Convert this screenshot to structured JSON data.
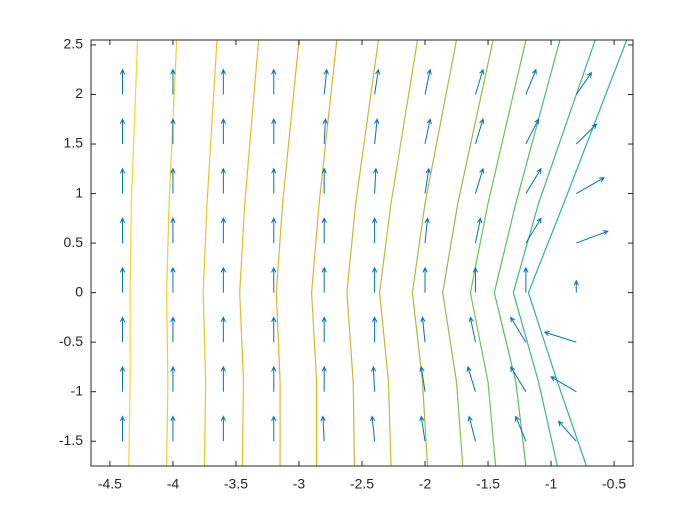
{
  "chart_data": {
    "type": "quiver",
    "xlim": [
      -4.65,
      -0.35
    ],
    "ylim": [
      -1.75,
      2.55
    ],
    "xticks": [
      -4.5,
      -4,
      -3.5,
      -3,
      -2.5,
      -2,
      -1.5,
      -1,
      -0.5
    ],
    "yticks": [
      -1.5,
      -1,
      -0.5,
      0,
      0.5,
      1,
      1.5,
      2,
      2.5
    ],
    "color": "#0072bd",
    "x": [
      -4.4,
      -4.0,
      -3.6,
      -3.2,
      -2.8,
      -2.4,
      -2.0,
      -1.6,
      -1.2,
      -0.8,
      -4.4,
      -4.0,
      -3.6,
      -3.2,
      -2.8,
      -2.4,
      -2.0,
      -1.6,
      -1.2,
      -0.8,
      -4.4,
      -4.0,
      -3.6,
      -3.2,
      -2.8,
      -2.4,
      -2.0,
      -1.6,
      -1.2,
      -0.8,
      -4.4,
      -4.0,
      -3.6,
      -3.2,
      -2.8,
      -2.4,
      -2.0,
      -1.6,
      -1.2,
      -0.8,
      -4.4,
      -4.0,
      -3.6,
      -3.2,
      -2.8,
      -2.4,
      -2.0,
      -1.6,
      -1.2,
      -0.8,
      -4.4,
      -4.0,
      -3.6,
      -3.2,
      -2.8,
      -2.4,
      -2.0,
      -1.6,
      -1.2,
      -0.8,
      -4.4,
      -4.0,
      -3.6,
      -3.2,
      -2.8,
      -2.4,
      -2.0,
      -1.6,
      -1.2,
      -0.8,
      -4.4,
      -4.0,
      -3.6,
      -3.2,
      -2.8,
      -2.4,
      -2.0,
      -1.6,
      -1.2,
      -0.8
    ],
    "y": [
      -1.5,
      -1.5,
      -1.5,
      -1.5,
      -1.5,
      -1.5,
      -1.5,
      -1.5,
      -1.5,
      -1.5,
      -1,
      -1,
      -1,
      -1,
      -1,
      -1,
      -1,
      -1,
      -1,
      -1,
      -0.5,
      -0.5,
      -0.5,
      -0.5,
      -0.5,
      -0.5,
      -0.5,
      -0.5,
      -0.5,
      -0.5,
      0,
      0,
      0,
      0,
      0,
      0,
      0,
      0,
      0,
      0,
      0.5,
      0.5,
      0.5,
      0.5,
      0.5,
      0.5,
      0.5,
      0.5,
      0.5,
      0.5,
      1,
      1,
      1,
      1,
      1,
      1,
      1,
      1,
      1,
      1,
      1.5,
      1.5,
      1.5,
      1.5,
      1.5,
      1.5,
      1.5,
      1.5,
      1.5,
      1.5,
      2,
      2,
      2,
      2,
      2,
      2,
      2,
      2,
      2,
      2
    ],
    "u": [
      0,
      0,
      0,
      0,
      -0.01,
      -0.02,
      -0.03,
      -0.05,
      -0.08,
      -0.14,
      0,
      0,
      0,
      0,
      0,
      -0.01,
      -0.03,
      -0.06,
      -0.12,
      -0.2,
      0,
      0,
      0,
      0,
      0,
      0,
      -0.02,
      -0.04,
      -0.12,
      -0.25,
      0,
      0,
      0,
      0,
      0,
      0,
      0,
      0,
      0,
      0,
      0,
      0,
      0,
      0,
      0,
      0,
      0.02,
      0.04,
      0.12,
      0.25,
      0,
      0,
      0,
      0,
      0,
      0.01,
      0.03,
      0.06,
      0.12,
      0.22,
      0,
      0,
      0,
      0,
      0.01,
      0.02,
      0.04,
      0.06,
      0.1,
      0.16,
      0,
      0,
      0,
      0,
      0.02,
      0.03,
      0.04,
      0.06,
      0.08,
      0.12
    ],
    "v": [
      0.25,
      0.25,
      0.25,
      0.25,
      0.25,
      0.25,
      0.25,
      0.25,
      0.25,
      0.2,
      0.25,
      0.25,
      0.25,
      0.25,
      0.25,
      0.25,
      0.25,
      0.25,
      0.25,
      0.15,
      0.25,
      0.25,
      0.25,
      0.25,
      0.25,
      0.25,
      0.25,
      0.25,
      0.25,
      0.1,
      0.25,
      0.25,
      0.25,
      0.25,
      0.25,
      0.25,
      0.25,
      0.25,
      0.25,
      0.12,
      0.25,
      0.25,
      0.25,
      0.25,
      0.25,
      0.25,
      0.25,
      0.25,
      0.25,
      0.12,
      0.25,
      0.25,
      0.25,
      0.25,
      0.25,
      0.25,
      0.25,
      0.25,
      0.25,
      0.16,
      0.25,
      0.25,
      0.25,
      0.25,
      0.25,
      0.25,
      0.25,
      0.25,
      0.25,
      0.2,
      0.25,
      0.25,
      0.25,
      0.25,
      0.25,
      0.25,
      0.25,
      0.25,
      0.25,
      0.22
    ],
    "contours": [
      {
        "color": "#f7d52c",
        "x": [
          -4.35,
          -4.34,
          -4.34,
          -4.33,
          -4.28
        ],
        "y": [
          -1.75,
          -0.9,
          0,
          0.9,
          2.55
        ]
      },
      {
        "color": "#f4cd28",
        "x": [
          -4.05,
          -4.04,
          -4.05,
          -4.03,
          -3.97
        ],
        "y": [
          -1.75,
          -0.9,
          0,
          0.9,
          2.55
        ]
      },
      {
        "color": "#efc226",
        "x": [
          -3.75,
          -3.74,
          -3.76,
          -3.73,
          -3.65
        ],
        "y": [
          -1.75,
          -0.9,
          0,
          0.9,
          2.55
        ]
      },
      {
        "color": "#edb925",
        "x": [
          -3.45,
          -3.44,
          -3.47,
          -3.43,
          -3.32
        ],
        "y": [
          -1.75,
          -0.9,
          0,
          0.9,
          2.55
        ]
      },
      {
        "color": "#e8b224",
        "x": [
          -3.15,
          -3.15,
          -3.18,
          -3.13,
          -3.0
        ],
        "y": [
          -1.75,
          -0.9,
          0,
          0.9,
          2.55
        ]
      },
      {
        "color": "#dcb52a",
        "x": [
          -2.86,
          -2.86,
          -2.9,
          -2.84,
          -2.7
        ],
        "y": [
          -1.75,
          -0.9,
          0,
          0.9,
          2.55
        ]
      },
      {
        "color": "#cdb731",
        "x": [
          -2.56,
          -2.57,
          -2.62,
          -2.55,
          -2.37
        ],
        "y": [
          -1.75,
          -0.9,
          0,
          0.9,
          2.55
        ]
      },
      {
        "color": "#bcbc36",
        "x": [
          -2.27,
          -2.29,
          -2.36,
          -2.27,
          -2.06
        ],
        "y": [
          -1.75,
          -0.9,
          0,
          0.9,
          2.55
        ]
      },
      {
        "color": "#a6be3c",
        "x": [
          -1.98,
          -2.02,
          -2.1,
          -2.0,
          -1.75
        ],
        "y": [
          -1.75,
          -0.9,
          0,
          0.9,
          2.55
        ]
      },
      {
        "color": "#8cc146",
        "x": [
          -1.7,
          -1.75,
          -1.86,
          -1.74,
          -1.46
        ],
        "y": [
          -1.75,
          -0.9,
          0,
          0.9,
          2.55
        ]
      },
      {
        "color": "#6ec355",
        "x": [
          -1.44,
          -1.5,
          -1.64,
          -1.5,
          -1.2
        ],
        "y": [
          -1.75,
          -0.9,
          0,
          0.9,
          2.55
        ]
      },
      {
        "color": "#52c069",
        "x": [
          -1.2,
          -1.28,
          -1.45,
          -1.28,
          -0.93
        ],
        "y": [
          -1.75,
          -0.9,
          0,
          0.9,
          2.55
        ]
      },
      {
        "color": "#3dbb84",
        "x": [
          -0.95,
          -1.1,
          -1.3,
          -1.1,
          -0.65
        ],
        "y": [
          -1.75,
          -0.9,
          0,
          0.9,
          2.55
        ]
      },
      {
        "color": "#2fb59a",
        "x": [
          -0.72,
          -0.95,
          -1.18,
          -0.9,
          -0.4
        ],
        "y": [
          -1.75,
          -0.9,
          0,
          0.9,
          2.55
        ]
      }
    ]
  }
}
